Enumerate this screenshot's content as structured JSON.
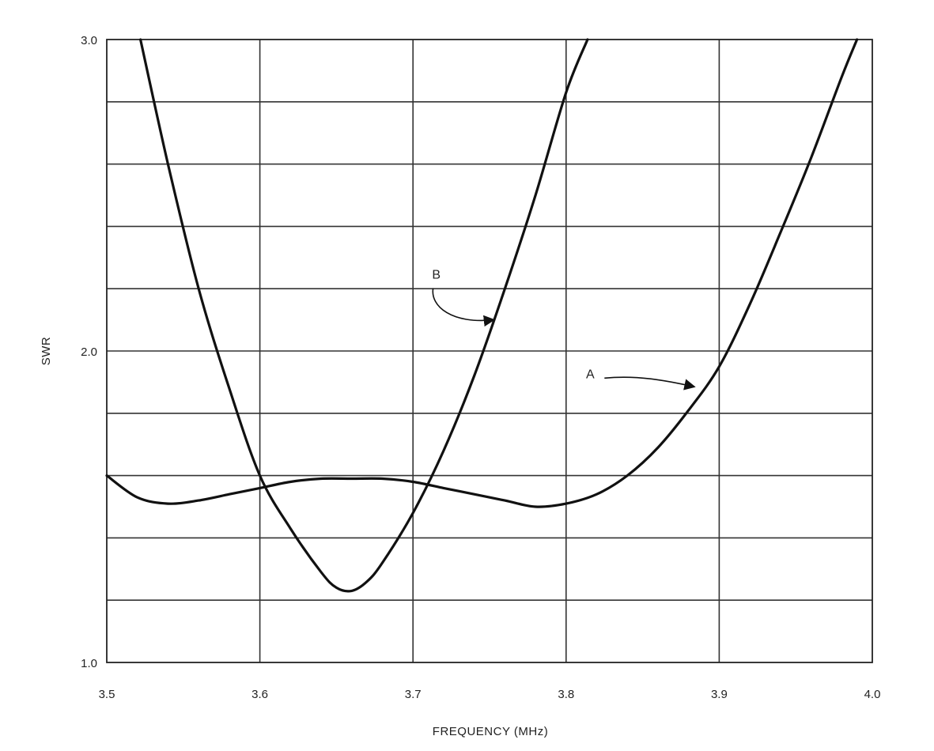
{
  "chart_data": {
    "type": "line",
    "title": "",
    "xlabel": "FREQUENCY (MHz)",
    "ylabel": "SWR",
    "xlim": [
      3.5,
      4.0
    ],
    "ylim": [
      1.0,
      3.0
    ],
    "xticks": [
      3.5,
      3.6,
      3.7,
      3.8,
      3.9,
      4.0
    ],
    "xtick_labels": [
      "3.5",
      "3.6",
      "3.7",
      "3.8",
      "3.9",
      "4.0"
    ],
    "yticks": [
      1.0,
      2.0,
      3.0
    ],
    "ytick_labels": [
      "1.0",
      "2.0",
      "3.0"
    ],
    "y_gridlines": [
      1.2,
      1.4,
      1.6,
      1.8,
      2.0,
      2.2,
      2.4,
      2.6,
      2.8
    ],
    "grid": true,
    "legend": "none",
    "line_color": "#111111",
    "grid_color": "#333333",
    "series": [
      {
        "name": "A",
        "x": [
          3.5,
          3.52,
          3.54,
          3.56,
          3.58,
          3.6,
          3.62,
          3.64,
          3.66,
          3.68,
          3.7,
          3.72,
          3.74,
          3.76,
          3.78,
          3.8,
          3.82,
          3.84,
          3.86,
          3.88,
          3.9,
          3.92,
          3.94,
          3.96,
          3.98,
          3.99
        ],
        "y": [
          1.6,
          1.53,
          1.51,
          1.52,
          1.54,
          1.56,
          1.58,
          1.59,
          1.59,
          1.59,
          1.58,
          1.56,
          1.54,
          1.52,
          1.5,
          1.51,
          1.54,
          1.6,
          1.69,
          1.81,
          1.95,
          2.15,
          2.38,
          2.62,
          2.88,
          3.0
        ]
      },
      {
        "name": "B",
        "x": [
          3.522,
          3.54,
          3.56,
          3.58,
          3.6,
          3.62,
          3.64,
          3.65,
          3.66,
          3.67,
          3.68,
          3.7,
          3.72,
          3.74,
          3.76,
          3.78,
          3.8,
          3.814
        ],
        "y": [
          3.0,
          2.6,
          2.2,
          1.88,
          1.6,
          1.43,
          1.29,
          1.24,
          1.23,
          1.26,
          1.32,
          1.48,
          1.68,
          1.92,
          2.2,
          2.5,
          2.83,
          3.0
        ]
      }
    ],
    "annotations": [
      {
        "text": "B",
        "points_to": [
          3.755,
          2.08
        ]
      },
      {
        "text": "A",
        "points_to": [
          3.886,
          1.88
        ]
      }
    ]
  }
}
